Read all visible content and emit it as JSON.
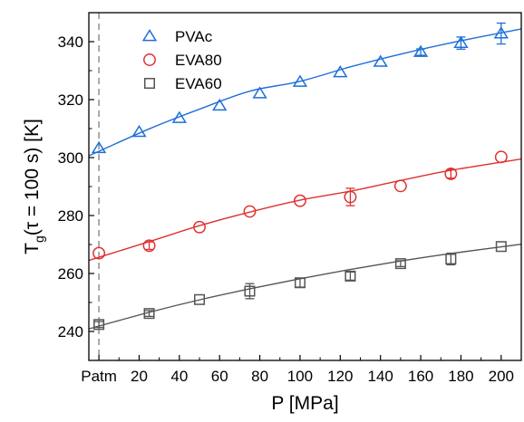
{
  "chart_data": {
    "type": "scatter",
    "xlabel": "P [MPa]",
    "ylabel_main": "T",
    "ylabel_sub": "g",
    "ylabel_rest": "(τ = 100 s) [K]",
    "xlim": [
      -5,
      210
    ],
    "ylim": [
      230,
      350
    ],
    "x_ticks": [
      {
        "value": 0,
        "label": "Patm"
      },
      {
        "value": 20,
        "label": "20"
      },
      {
        "value": 40,
        "label": "40"
      },
      {
        "value": 60,
        "label": "60"
      },
      {
        "value": 80,
        "label": "80"
      },
      {
        "value": 100,
        "label": "100"
      },
      {
        "value": 120,
        "label": "120"
      },
      {
        "value": 140,
        "label": "140"
      },
      {
        "value": 160,
        "label": "160"
      },
      {
        "value": 180,
        "label": "180"
      },
      {
        "value": 200,
        "label": "200"
      }
    ],
    "y_ticks": [
      240,
      260,
      280,
      300,
      320,
      340
    ],
    "y_minor_ticks": [
      250,
      270,
      290,
      310,
      330
    ],
    "reference_line_x": 0,
    "legend_position": "top-left",
    "series": [
      {
        "name": "PVAc",
        "marker": "triangle",
        "color": "#1f6fd8",
        "points": [
          {
            "x": 0,
            "y": 303.2
          },
          {
            "x": 20,
            "y": 308.8
          },
          {
            "x": 40,
            "y": 313.6
          },
          {
            "x": 60,
            "y": 317.9
          },
          {
            "x": 80,
            "y": 322.1
          },
          {
            "x": 100,
            "y": 326.1
          },
          {
            "x": 120,
            "y": 329.4
          },
          {
            "x": 140,
            "y": 333.0
          },
          {
            "x": 160,
            "y": 336.4
          },
          {
            "x": 180,
            "y": 339.5
          },
          {
            "x": 200,
            "y": 342.8
          }
        ],
        "errors": [
          {
            "x": 160,
            "y": 336.4,
            "err": 1.1
          },
          {
            "x": 180,
            "y": 339.5,
            "err": 2.1
          },
          {
            "x": 200,
            "y": 342.8,
            "err": 3.6
          }
        ],
        "fit_curve": [
          {
            "x": -5,
            "y": 300.6
          },
          {
            "x": 25,
            "y": 309.9
          },
          {
            "x": 50,
            "y": 316.7
          },
          {
            "x": 75,
            "y": 322.9
          },
          {
            "x": 100,
            "y": 326.3
          },
          {
            "x": 125,
            "y": 331.3
          },
          {
            "x": 150,
            "y": 335.7
          },
          {
            "x": 175,
            "y": 339.6
          },
          {
            "x": 210,
            "y": 344.4
          }
        ]
      },
      {
        "name": "EVA80",
        "marker": "circle",
        "color": "#e03030",
        "points": [
          {
            "x": 0,
            "y": 267.0
          },
          {
            "x": 25,
            "y": 269.6
          },
          {
            "x": 50,
            "y": 276.0
          },
          {
            "x": 75,
            "y": 281.4
          },
          {
            "x": 100,
            "y": 285.1
          },
          {
            "x": 125,
            "y": 286.4
          },
          {
            "x": 150,
            "y": 290.2
          },
          {
            "x": 175,
            "y": 294.4
          },
          {
            "x": 200,
            "y": 300.2
          }
        ],
        "errors": [
          {
            "x": 25,
            "y": 269.6,
            "err": 1.3
          },
          {
            "x": 125,
            "y": 286.4,
            "err": 3.0
          },
          {
            "x": 175,
            "y": 294.4,
            "err": 1.5
          }
        ],
        "fit_curve": [
          {
            "x": -5,
            "y": 264.5
          },
          {
            "x": 25,
            "y": 271.0
          },
          {
            "x": 50,
            "y": 276.5
          },
          {
            "x": 75,
            "y": 281.2
          },
          {
            "x": 100,
            "y": 285.3
          },
          {
            "x": 125,
            "y": 288.4
          },
          {
            "x": 150,
            "y": 292.1
          },
          {
            "x": 175,
            "y": 295.6
          },
          {
            "x": 210,
            "y": 299.5
          }
        ]
      },
      {
        "name": "EVA60",
        "marker": "square",
        "color": "#555555",
        "points": [
          {
            "x": 0,
            "y": 242.4
          },
          {
            "x": 25,
            "y": 246.2
          },
          {
            "x": 50,
            "y": 251.0
          },
          {
            "x": 75,
            "y": 253.9
          },
          {
            "x": 100,
            "y": 256.8
          },
          {
            "x": 125,
            "y": 259.1
          },
          {
            "x": 150,
            "y": 263.4
          },
          {
            "x": 175,
            "y": 265.0
          },
          {
            "x": 200,
            "y": 269.3
          }
        ],
        "errors": [
          {
            "x": 0,
            "y": 242.4,
            "err": 1.0
          },
          {
            "x": 25,
            "y": 246.2,
            "err": 1.0
          },
          {
            "x": 75,
            "y": 253.9,
            "err": 2.6
          },
          {
            "x": 100,
            "y": 256.8,
            "err": 1.5
          },
          {
            "x": 125,
            "y": 259.1,
            "err": 1.4
          },
          {
            "x": 150,
            "y": 263.4,
            "err": 1.0
          },
          {
            "x": 175,
            "y": 265.0,
            "err": 2.0
          }
        ],
        "fit_curve": [
          {
            "x": -5,
            "y": 240.9
          },
          {
            "x": 25,
            "y": 246.6
          },
          {
            "x": 50,
            "y": 250.9
          },
          {
            "x": 75,
            "y": 254.7
          },
          {
            "x": 100,
            "y": 258.2
          },
          {
            "x": 125,
            "y": 261.4
          },
          {
            "x": 150,
            "y": 264.3
          },
          {
            "x": 175,
            "y": 266.9
          },
          {
            "x": 210,
            "y": 270.1
          }
        ]
      }
    ]
  }
}
